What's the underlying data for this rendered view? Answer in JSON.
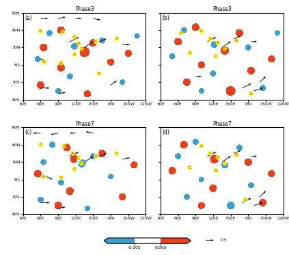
{
  "chart_data": {
    "type": "map",
    "xlim": [
      30,
      240
    ],
    "ylim": [
      -60,
      90
    ],
    "xticks": [
      {
        "value": 30,
        "label": "30E"
      },
      {
        "value": 60,
        "label": "60E"
      },
      {
        "value": 90,
        "label": "90E"
      },
      {
        "value": 120,
        "label": "120E"
      },
      {
        "value": 150,
        "label": "150E"
      },
      {
        "value": 180,
        "label": "180"
      },
      {
        "value": 210,
        "label": "150W"
      },
      {
        "value": 240,
        "label": "120W"
      }
    ],
    "yticks": [
      {
        "value": -60,
        "label": "60S"
      },
      {
        "value": -30,
        "label": "30S"
      },
      {
        "value": 0,
        "label": "EQ"
      },
      {
        "value": 30,
        "label": "30N"
      },
      {
        "value": 60,
        "label": "60N"
      },
      {
        "value": 90,
        "label": "90N"
      }
    ],
    "colorbar": {
      "levels": [
        -0.01,
        -0.005,
        0.005,
        0.01
      ],
      "ticks": [
        -0.005,
        0.005
      ],
      "colors": [
        "#3a9fd0",
        "#ffffff",
        "#e8401c"
      ]
    },
    "vector_ref": 0.5,
    "panels": [
      {
        "label": "(a)",
        "title": "Phase3",
        "blobs": [
          [
            95,
            60,
            0.01,
            5
          ],
          [
            135,
            22,
            0.012,
            6
          ],
          [
            150,
            38,
            0.01,
            5
          ],
          [
            65,
            30,
            0.01,
            5
          ],
          [
            95,
            -5,
            0.01,
            5
          ],
          [
            180,
            5,
            0.009,
            5
          ],
          [
            60,
            -35,
            0.01,
            5
          ],
          [
            140,
            -50,
            0.009,
            5
          ],
          [
            210,
            20,
            0.009,
            5
          ],
          [
            75,
            55,
            -0.01,
            5
          ],
          [
            118,
            32,
            -0.012,
            5
          ],
          [
            165,
            42,
            -0.01,
            5
          ],
          [
            55,
            10,
            -0.01,
            5
          ],
          [
            110,
            -20,
            -0.01,
            5
          ],
          [
            200,
            -30,
            -0.009,
            5
          ],
          [
            90,
            -45,
            -0.01,
            5
          ],
          [
            225,
            50,
            -0.009,
            5
          ]
        ],
        "centers": [
          [
            60,
            58,
            "A"
          ],
          [
            98,
            57,
            "C"
          ],
          [
            118,
            48,
            "C"
          ],
          [
            125,
            37,
            "A"
          ],
          [
            130,
            28,
            "C"
          ],
          [
            118,
            18,
            "A"
          ],
          [
            155,
            40,
            "C"
          ],
          [
            190,
            45,
            "A"
          ],
          [
            65,
            5,
            "C"
          ],
          [
            95,
            3,
            "A"
          ],
          [
            160,
            -15,
            "A"
          ]
        ],
        "vectors": [
          [
            60,
            80,
            0.5,
            0.0
          ],
          [
            90,
            80,
            0.5,
            0.1
          ],
          [
            120,
            80,
            0.4,
            0.0
          ],
          [
            150,
            80,
            0.5,
            -0.1
          ],
          [
            110,
            40,
            0.6,
            0.3
          ],
          [
            135,
            30,
            0.6,
            0.4
          ],
          [
            160,
            40,
            0.5,
            0.2
          ],
          [
            200,
            35,
            0.5,
            0.0
          ],
          [
            60,
            -40,
            0.6,
            0.0
          ],
          [
            90,
            -50,
            0.5,
            0.1
          ],
          [
            180,
            -35,
            0.4,
            0.3
          ],
          [
            70,
            5,
            -0.4,
            0.2
          ]
        ]
      },
      {
        "label": "(b)",
        "title": "Phase3",
        "blobs": [
          [
            90,
            65,
            0.01,
            5
          ],
          [
            140,
            25,
            0.012,
            5
          ],
          [
            165,
            55,
            0.01,
            5
          ],
          [
            60,
            40,
            0.01,
            5
          ],
          [
            100,
            0,
            0.009,
            5
          ],
          [
            185,
            -10,
            0.01,
            5
          ],
          [
            75,
            -30,
            0.01,
            5
          ],
          [
            150,
            -45,
            0.011,
            6
          ],
          [
            220,
            10,
            0.009,
            5
          ],
          [
            70,
            60,
            -0.01,
            5
          ],
          [
            122,
            35,
            -0.012,
            5
          ],
          [
            180,
            30,
            -0.01,
            5
          ],
          [
            50,
            15,
            -0.01,
            5
          ],
          [
            120,
            -15,
            -0.01,
            5
          ],
          [
            205,
            -40,
            -0.01,
            5
          ],
          [
            100,
            -45,
            -0.009,
            5
          ],
          [
            230,
            55,
            -0.009,
            5
          ]
        ],
        "centers": [
          [
            65,
            55,
            "A"
          ],
          [
            100,
            58,
            "C"
          ],
          [
            115,
            45,
            "C"
          ],
          [
            128,
            38,
            "A"
          ],
          [
            140,
            28,
            "C"
          ],
          [
            160,
            42,
            "A"
          ],
          [
            125,
            15,
            "C"
          ],
          [
            80,
            20,
            "A"
          ],
          [
            185,
            -50,
            "A"
          ]
        ],
        "vectors": [
          [
            110,
            40,
            0.6,
            0.3
          ],
          [
            135,
            30,
            0.6,
            0.4
          ],
          [
            155,
            45,
            0.5,
            0.2
          ],
          [
            185,
            40,
            0.4,
            0.0
          ],
          [
            170,
            -40,
            0.6,
            0.3
          ],
          [
            190,
            -45,
            0.6,
            0.2
          ],
          [
            200,
            -30,
            0.4,
            0.4
          ],
          [
            90,
            -20,
            0.4,
            0.0
          ]
        ]
      },
      {
        "label": "(c)",
        "title": "Phase7",
        "blobs": [
          [
            80,
            60,
            -0.01,
            5
          ],
          [
            130,
            28,
            -0.012,
            6
          ],
          [
            150,
            40,
            -0.01,
            5
          ],
          [
            65,
            30,
            -0.01,
            5
          ],
          [
            95,
            -5,
            -0.01,
            5
          ],
          [
            180,
            5,
            -0.009,
            5
          ],
          [
            60,
            -35,
            -0.01,
            5
          ],
          [
            140,
            -50,
            -0.009,
            5
          ],
          [
            105,
            55,
            0.01,
            5
          ],
          [
            118,
            35,
            0.012,
            5
          ],
          [
            165,
            45,
            0.01,
            5
          ],
          [
            55,
            10,
            0.01,
            5
          ],
          [
            110,
            -20,
            0.01,
            5
          ],
          [
            200,
            -30,
            0.009,
            5
          ],
          [
            90,
            -45,
            0.01,
            5
          ],
          [
            220,
            25,
            0.009,
            5
          ]
        ],
        "centers": [
          [
            60,
            60,
            "C"
          ],
          [
            100,
            58,
            "A"
          ],
          [
            115,
            45,
            "A"
          ],
          [
            125,
            37,
            "C"
          ],
          [
            130,
            28,
            "A"
          ],
          [
            118,
            18,
            "C"
          ],
          [
            155,
            40,
            "A"
          ],
          [
            190,
            45,
            "C"
          ],
          [
            65,
            5,
            "A"
          ],
          [
            95,
            3,
            "C"
          ]
        ],
        "vectors": [
          [
            60,
            80,
            -0.5,
            0.0
          ],
          [
            90,
            80,
            -0.5,
            -0.1
          ],
          [
            120,
            80,
            -0.4,
            0.0
          ],
          [
            150,
            80,
            -0.5,
            0.1
          ],
          [
            110,
            40,
            0.6,
            0.3
          ],
          [
            135,
            30,
            0.6,
            0.4
          ],
          [
            160,
            40,
            0.5,
            0.2
          ],
          [
            200,
            35,
            0.5,
            0.1
          ],
          [
            60,
            -40,
            0.6,
            0.0
          ],
          [
            90,
            -50,
            0.5,
            0.1
          ],
          [
            70,
            5,
            0.4,
            -0.2
          ]
        ]
      },
      {
        "label": "(d)",
        "title": "Phase7",
        "blobs": [
          [
            90,
            65,
            -0.01,
            5
          ],
          [
            140,
            25,
            -0.012,
            5
          ],
          [
            165,
            55,
            -0.01,
            5
          ],
          [
            60,
            40,
            -0.01,
            5
          ],
          [
            100,
            0,
            -0.009,
            5
          ],
          [
            185,
            -10,
            -0.01,
            5
          ],
          [
            75,
            -30,
            -0.01,
            5
          ],
          [
            150,
            -45,
            -0.011,
            6
          ],
          [
            220,
            10,
            0.009,
            5
          ],
          [
            70,
            60,
            0.01,
            5
          ],
          [
            122,
            35,
            0.012,
            5
          ],
          [
            180,
            30,
            0.01,
            5
          ],
          [
            50,
            15,
            0.01,
            5
          ],
          [
            120,
            -15,
            0.01,
            5
          ],
          [
            205,
            -40,
            0.01,
            5
          ],
          [
            100,
            -45,
            0.009,
            5
          ]
        ],
        "centers": [
          [
            100,
            58,
            "A"
          ],
          [
            115,
            45,
            "C"
          ],
          [
            128,
            38,
            "A"
          ],
          [
            140,
            28,
            "C"
          ],
          [
            160,
            42,
            "C"
          ],
          [
            125,
            15,
            "A"
          ],
          [
            80,
            20,
            "C"
          ],
          [
            175,
            -35,
            "C"
          ]
        ],
        "vectors": [
          [
            110,
            40,
            0.6,
            0.3
          ],
          [
            135,
            30,
            0.6,
            0.4
          ],
          [
            155,
            45,
            0.5,
            0.2
          ],
          [
            185,
            40,
            0.4,
            0.0
          ],
          [
            170,
            -40,
            0.6,
            0.3
          ],
          [
            190,
            -45,
            0.6,
            0.2
          ],
          [
            200,
            -30,
            0.4,
            0.4
          ]
        ]
      }
    ]
  }
}
